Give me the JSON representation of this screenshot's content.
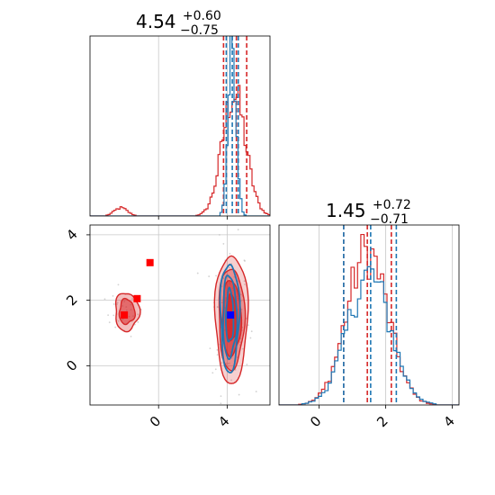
{
  "colors": {
    "red": "#d62728",
    "blue": "#1f77b4",
    "pure_red": "#ff0000",
    "pure_blue": "#0000ff",
    "grid": "#c8c8c8",
    "cloud": "#bfbfbf"
  },
  "chart_data": {
    "type": "corner",
    "panels": [
      {
        "id": "marginal-1",
        "type": "histogram",
        "title": {
          "value": "4.54",
          "sup": "+0.60",
          "sub": "−0.75"
        },
        "xlim": [
          -4,
          6.5
        ],
        "gridlines_x": [
          0,
          4
        ],
        "series": [
          {
            "name": "",
            "color": "#d62728",
            "quantile_lines": [
              3.79,
              4.54,
              5.14
            ],
            "peaks": [
              {
                "center": -2.2,
                "width": 0.9,
                "height": 0.045
              },
              {
                "center": 4.4,
                "width": 1.6,
                "height": 0.68
              }
            ]
          },
          {
            "name": "",
            "color": "#1f77b4",
            "quantile_lines": [
              3.95,
              4.3,
              4.65
            ],
            "peaks": [
              {
                "center": 4.3,
                "width": 0.55,
                "height": 0.97
              }
            ]
          }
        ]
      },
      {
        "id": "marginal-2",
        "type": "histogram",
        "title": {
          "value": "1.45",
          "sup": "+0.72",
          "sub": "−0.71"
        },
        "xlim": [
          -1.2,
          4.2
        ],
        "xticks": [
          "0",
          "2",
          "4"
        ],
        "xtick_values": [
          0,
          2,
          4
        ],
        "gridlines_x": [
          0,
          2,
          4
        ],
        "series": [
          {
            "name": "",
            "color": "#d62728",
            "quantile_lines": [
              0.74,
              1.45,
              2.17
            ],
            "peaks": [
              {
                "center": 1.45,
                "width": 1.45,
                "height": 0.85
              }
            ]
          },
          {
            "name": "",
            "color": "#1f77b4",
            "quantile_lines": [
              0.74,
              1.55,
              2.32
            ],
            "peaks": [
              {
                "center": 1.5,
                "width": 1.5,
                "height": 0.72
              }
            ]
          }
        ]
      },
      {
        "id": "joint-1-2",
        "type": "contour",
        "xlim": [
          -4,
          6.5
        ],
        "ylim": [
          -1.2,
          4.3
        ],
        "xticks": [
          "0",
          "4"
        ],
        "xtick_values": [
          0,
          4
        ],
        "yticks": [
          "0",
          "2",
          "4"
        ],
        "ytick_values": [
          0,
          2,
          4
        ],
        "gridlines_x": [
          0,
          4
        ],
        "gridlines_y": [
          0,
          2,
          4
        ],
        "red_markers": [
          {
            "x": -2.0,
            "y": 1.55
          },
          {
            "x": -1.25,
            "y": 2.05
          },
          {
            "x": -0.5,
            "y": 3.15
          }
        ],
        "blue_markers": [
          {
            "x": 4.2,
            "y": 1.55
          }
        ]
      }
    ]
  }
}
